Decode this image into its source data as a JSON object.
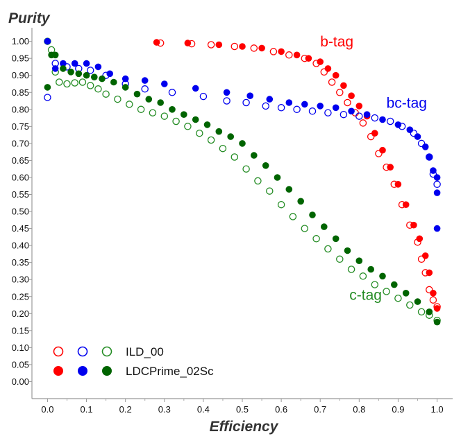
{
  "chart_data": {
    "type": "scatter",
    "title": "",
    "xlabel": "Efficiency",
    "ylabel": "Purity",
    "xlim": [
      -0.04,
      1.04
    ],
    "ylim": [
      -0.05,
      1.04
    ],
    "x_ticks": [
      0.0,
      0.1,
      0.2,
      0.3,
      0.4,
      0.5,
      0.6,
      0.7,
      0.8,
      0.9,
      1.0
    ],
    "x_tick_labels": [
      "0.0",
      "0.1",
      "0.2",
      "0.3",
      "0.4",
      "0.5",
      "0.6",
      "0.7",
      "0.8",
      "0.9",
      "1.0"
    ],
    "y_ticks": [
      0.0,
      0.05,
      0.1,
      0.15,
      0.2,
      0.25,
      0.3,
      0.35,
      0.4,
      0.45,
      0.5,
      0.55,
      0.6,
      0.65,
      0.7,
      0.75,
      0.8,
      0.85,
      0.9,
      0.95,
      1.0
    ],
    "y_tick_labels": [
      "0.00",
      "0.05",
      "0.10",
      "0.15",
      "0.20",
      "0.25",
      "0.30",
      "0.35",
      "0.40",
      "0.45",
      "0.50",
      "0.55",
      "0.60",
      "0.65",
      "0.70",
      "0.75",
      "0.80",
      "0.85",
      "0.90",
      "0.95",
      "1.00"
    ],
    "grid": false,
    "legend": {
      "position": "bottom-left",
      "entries": [
        {
          "label": "ILD_00",
          "marker": "open-circle"
        },
        {
          "label": "LDCPrime_02Sc",
          "marker": "filled-circle"
        }
      ]
    },
    "annotations": [
      {
        "text": "b-tag",
        "x": 0.7,
        "y": 0.985,
        "color": "#ff0000"
      },
      {
        "text": "bc-tag",
        "x": 0.87,
        "y": 0.805,
        "color": "#0000ee"
      },
      {
        "text": "c-tag",
        "x": 0.775,
        "y": 0.24,
        "color": "#228b22"
      }
    ],
    "series": [
      {
        "name": "b-tag ILD_00",
        "group": "b-tag",
        "detector": "ILD_00",
        "color": "#ff0000",
        "filled": false,
        "x": [
          0.29,
          0.37,
          0.42,
          0.48,
          0.53,
          0.58,
          0.62,
          0.66,
          0.69,
          0.71,
          0.73,
          0.75,
          0.77,
          0.79,
          0.81,
          0.83,
          0.85,
          0.87,
          0.89,
          0.91,
          0.93,
          0.95,
          0.96,
          0.97,
          0.98,
          0.99,
          1.0
        ],
        "y": [
          0.995,
          0.993,
          0.99,
          0.985,
          0.98,
          0.97,
          0.96,
          0.95,
          0.935,
          0.91,
          0.88,
          0.85,
          0.82,
          0.79,
          0.76,
          0.72,
          0.67,
          0.63,
          0.58,
          0.52,
          0.46,
          0.41,
          0.36,
          0.32,
          0.27,
          0.24,
          0.22
        ]
      },
      {
        "name": "b-tag LDCPrime_02Sc",
        "group": "b-tag",
        "detector": "LDCPrime_02Sc",
        "color": "#ff0000",
        "filled": true,
        "x": [
          0.28,
          0.36,
          0.44,
          0.5,
          0.55,
          0.6,
          0.64,
          0.67,
          0.7,
          0.72,
          0.74,
          0.76,
          0.78,
          0.8,
          0.82,
          0.84,
          0.86,
          0.88,
          0.9,
          0.92,
          0.94,
          0.955,
          0.97,
          0.98,
          0.99,
          1.0
        ],
        "y": [
          0.997,
          0.995,
          0.99,
          0.985,
          0.98,
          0.97,
          0.96,
          0.95,
          0.94,
          0.92,
          0.9,
          0.87,
          0.84,
          0.81,
          0.78,
          0.73,
          0.68,
          0.63,
          0.58,
          0.52,
          0.46,
          0.42,
          0.37,
          0.32,
          0.26,
          0.215
        ]
      },
      {
        "name": "bc-tag ILD_00",
        "group": "bc-tag",
        "detector": "ILD_00",
        "color": "#0000ee",
        "filled": false,
        "x": [
          0.0,
          0.02,
          0.05,
          0.08,
          0.11,
          0.15,
          0.2,
          0.25,
          0.32,
          0.4,
          0.46,
          0.51,
          0.56,
          0.6,
          0.64,
          0.68,
          0.72,
          0.76,
          0.8,
          0.84,
          0.88,
          0.91,
          0.94,
          0.96,
          0.98,
          0.99,
          1.0
        ],
        "y": [
          0.835,
          0.935,
          0.925,
          0.92,
          0.915,
          0.9,
          0.875,
          0.86,
          0.85,
          0.838,
          0.825,
          0.82,
          0.81,
          0.805,
          0.8,
          0.795,
          0.79,
          0.785,
          0.78,
          0.775,
          0.765,
          0.75,
          0.73,
          0.7,
          0.66,
          0.61,
          0.58
        ]
      },
      {
        "name": "bc-tag LDCPrime_02Sc",
        "group": "bc-tag",
        "detector": "LDCPrime_02Sc",
        "color": "#0000ee",
        "filled": true,
        "x": [
          0.0,
          0.02,
          0.04,
          0.07,
          0.1,
          0.13,
          0.16,
          0.2,
          0.25,
          0.3,
          0.38,
          0.46,
          0.52,
          0.57,
          0.62,
          0.66,
          0.7,
          0.74,
          0.78,
          0.82,
          0.86,
          0.9,
          0.93,
          0.95,
          0.97,
          0.98,
          0.99,
          1.0,
          1.0,
          1.0
        ],
        "y": [
          1.0,
          0.92,
          0.935,
          0.935,
          0.935,
          0.925,
          0.905,
          0.89,
          0.885,
          0.875,
          0.862,
          0.85,
          0.84,
          0.83,
          0.82,
          0.815,
          0.81,
          0.805,
          0.795,
          0.785,
          0.77,
          0.755,
          0.74,
          0.72,
          0.69,
          0.66,
          0.62,
          0.6,
          0.555,
          0.45
        ]
      },
      {
        "name": "c-tag ILD_00",
        "group": "c-tag",
        "detector": "ILD_00",
        "color": "#228b22",
        "filled": false,
        "x": [
          0.0,
          0.01,
          0.02,
          0.03,
          0.05,
          0.07,
          0.09,
          0.11,
          0.13,
          0.15,
          0.18,
          0.21,
          0.24,
          0.27,
          0.3,
          0.33,
          0.36,
          0.39,
          0.42,
          0.45,
          0.48,
          0.51,
          0.54,
          0.57,
          0.6,
          0.63,
          0.66,
          0.69,
          0.72,
          0.75,
          0.78,
          0.81,
          0.84,
          0.87,
          0.9,
          0.93,
          0.96,
          0.98,
          1.0
        ],
        "y": [
          1.0,
          0.975,
          0.91,
          0.88,
          0.875,
          0.878,
          0.88,
          0.87,
          0.86,
          0.845,
          0.83,
          0.815,
          0.8,
          0.79,
          0.78,
          0.765,
          0.75,
          0.73,
          0.71,
          0.685,
          0.66,
          0.625,
          0.59,
          0.56,
          0.52,
          0.485,
          0.45,
          0.42,
          0.39,
          0.36,
          0.33,
          0.31,
          0.285,
          0.265,
          0.245,
          0.225,
          0.205,
          0.195,
          0.18
        ]
      },
      {
        "name": "c-tag LDCPrime_02Sc",
        "group": "c-tag",
        "detector": "LDCPrime_02Sc",
        "color": "#006400",
        "filled": true,
        "x": [
          0.0,
          0.01,
          0.02,
          0.04,
          0.06,
          0.08,
          0.1,
          0.12,
          0.14,
          0.17,
          0.2,
          0.23,
          0.26,
          0.29,
          0.32,
          0.35,
          0.38,
          0.41,
          0.44,
          0.47,
          0.5,
          0.53,
          0.56,
          0.59,
          0.62,
          0.65,
          0.68,
          0.71,
          0.74,
          0.77,
          0.8,
          0.83,
          0.86,
          0.89,
          0.92,
          0.95,
          0.98,
          1.0
        ],
        "y": [
          0.865,
          0.96,
          0.96,
          0.92,
          0.91,
          0.905,
          0.9,
          0.895,
          0.89,
          0.88,
          0.865,
          0.845,
          0.83,
          0.82,
          0.8,
          0.785,
          0.77,
          0.755,
          0.735,
          0.72,
          0.7,
          0.665,
          0.635,
          0.6,
          0.565,
          0.53,
          0.49,
          0.455,
          0.42,
          0.385,
          0.355,
          0.33,
          0.31,
          0.285,
          0.26,
          0.235,
          0.205,
          0.175
        ]
      }
    ]
  }
}
